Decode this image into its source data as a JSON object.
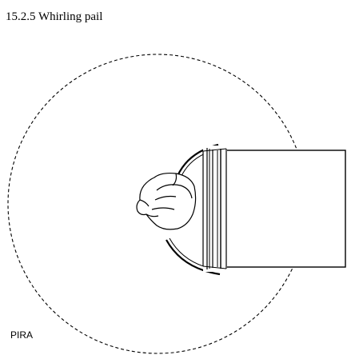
{
  "title": "15.2.5 Whirling pail",
  "credit": "PIRA",
  "illustration": {
    "subject": "hand swinging a pail in a vertical circle",
    "path_style": "dashed circle",
    "line_color": "#000000",
    "background": "#ffffff"
  }
}
